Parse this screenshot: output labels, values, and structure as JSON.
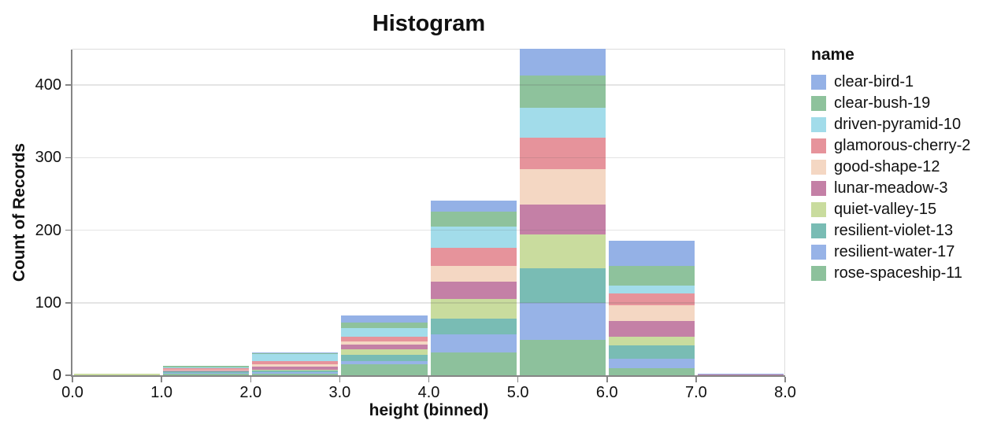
{
  "chart_data": {
    "type": "bar",
    "subtype": "stacked-histogram",
    "title": "Histogram",
    "xlabel": "height (binned)",
    "ylabel": "Count of Records",
    "bin_edges": [
      0,
      1,
      2,
      3,
      4,
      5,
      6,
      7,
      8
    ],
    "x_tick_labels": [
      "0.0",
      "1.0",
      "2.0",
      "3.0",
      "4.0",
      "5.0",
      "6.0",
      "7.0",
      "8.0"
    ],
    "y_ticks": [
      0,
      100,
      200,
      300,
      400
    ],
    "y_tick_labels": [
      "0",
      "100",
      "200",
      "300",
      "400"
    ],
    "ylim": [
      0,
      450
    ],
    "grid": true,
    "legend_position": "right",
    "stack_note": "first series renders at top of each stack, last series at bottom",
    "bin_totals": [
      2,
      13,
      31,
      82,
      241,
      450,
      185,
      2
    ],
    "series": [
      {
        "name": "clear-bird-1",
        "color": "#94b1e6",
        "values": [
          0,
          0,
          1,
          9,
          15,
          37,
          34,
          1
        ]
      },
      {
        "name": "clear-bush-19",
        "color": "#8ec29c",
        "values": [
          0,
          2,
          1,
          8,
          21,
          44,
          27,
          0
        ]
      },
      {
        "name": "driven-pyramid-10",
        "color": "#a2dcea",
        "values": [
          0,
          1,
          10,
          12,
          29,
          42,
          11,
          0
        ]
      },
      {
        "name": "glamorous-cherry-2",
        "color": "#e6939b",
        "values": [
          0,
          2,
          4,
          6,
          25,
          43,
          17,
          0
        ]
      },
      {
        "name": "good-shape-12",
        "color": "#f4d7c3",
        "values": [
          0,
          1,
          3,
          5,
          22,
          49,
          21,
          0
        ]
      },
      {
        "name": "lunar-meadow-3",
        "color": "#c480a6",
        "values": [
          0,
          1,
          4,
          6,
          24,
          41,
          22,
          1
        ]
      },
      {
        "name": "quiet-valley-15",
        "color": "#c9dc9e",
        "values": [
          2,
          1,
          2,
          8,
          27,
          46,
          12,
          0
        ]
      },
      {
        "name": "resilient-violet-13",
        "color": "#79bcb4",
        "values": [
          0,
          2,
          2,
          8,
          22,
          48,
          18,
          0
        ]
      },
      {
        "name": "resilient-water-17",
        "color": "#97b3e7",
        "values": [
          0,
          1,
          2,
          5,
          25,
          51,
          13,
          0
        ]
      },
      {
        "name": "rose-spaceship-11",
        "color": "#8dc19c",
        "values": [
          0,
          2,
          2,
          15,
          31,
          49,
          10,
          0
        ]
      }
    ]
  },
  "legend": {
    "title": "name"
  },
  "style_colors": {
    "grid": "#dddddd",
    "axis": "#858585",
    "text": "#111111",
    "background": "#ffffff"
  }
}
